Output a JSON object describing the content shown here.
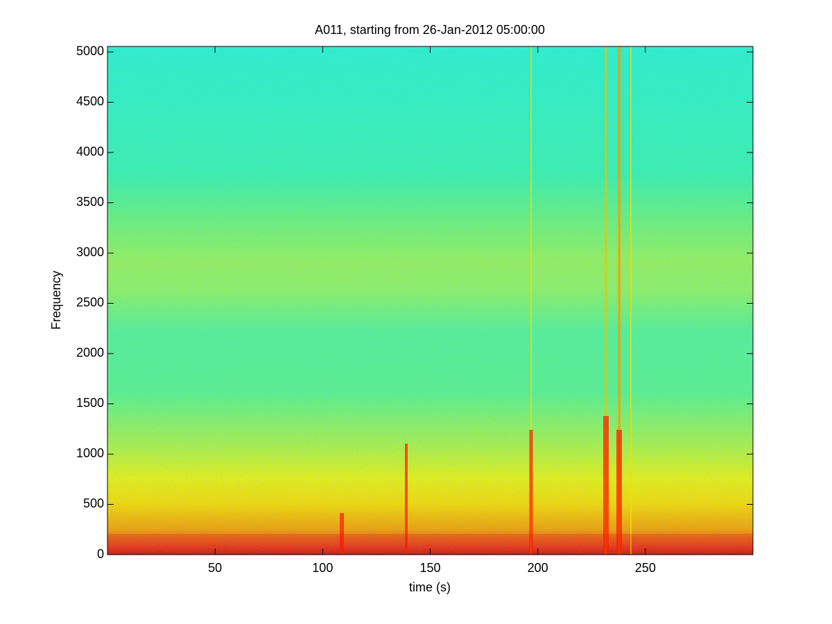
{
  "chart_data": {
    "type": "spectrogram",
    "title": "A011, starting from 26-Jan-2012 05:00:00",
    "x_label": "time (s)",
    "y_label": "Frequency",
    "xlim": [
      0,
      300
    ],
    "ylim": [
      0,
      5055
    ],
    "xticks": [
      50,
      100,
      150,
      200,
      250
    ],
    "yticks": [
      0,
      500,
      1000,
      1500,
      2000,
      2500,
      3000,
      3500,
      4000,
      4500,
      5000
    ]
  }
}
